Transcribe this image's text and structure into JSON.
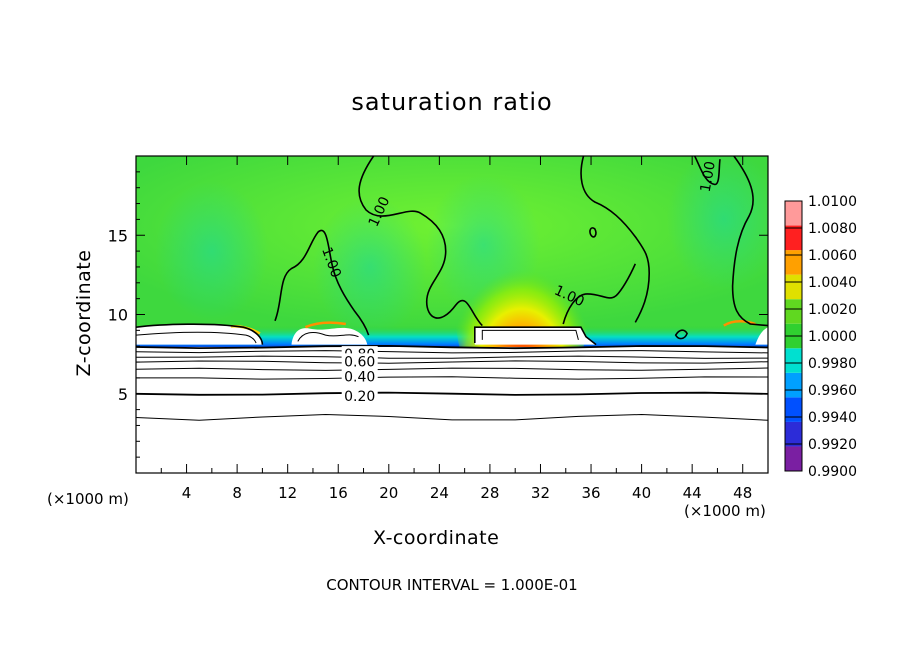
{
  "chart_data": {
    "type": "heatmap",
    "title": "saturation ratio",
    "xlabel": "X-coordinate",
    "ylabel": "Z-coordinate",
    "x_unit_left": "(×1000 m)",
    "x_unit_right": "(×1000 m)",
    "footer": "CONTOUR INTERVAL = 1.000E-01",
    "xlim": [
      0,
      50
    ],
    "ylim": [
      0,
      20
    ],
    "x_ticks": [
      4,
      8,
      12,
      16,
      20,
      24,
      28,
      32,
      36,
      40,
      44,
      48
    ],
    "x_tick_labels": [
      "4",
      "8",
      "12",
      "16",
      "20",
      "24",
      "28",
      "32",
      "36",
      "40",
      "44",
      "48"
    ],
    "y_ticks": [
      5,
      10,
      15
    ],
    "y_tick_labels": [
      "5",
      "10",
      "15"
    ],
    "colorbar": {
      "min": 0.99,
      "max": 1.01,
      "tick_values": [
        0.99,
        0.992,
        0.994,
        0.996,
        0.998,
        1.0,
        1.002,
        1.004,
        1.006,
        1.008,
        1.01
      ],
      "tick_labels": [
        "0.9900",
        "0.9920",
        "0.9940",
        "0.9960",
        "0.9980",
        "1.0000",
        "1.0020",
        "1.0040",
        "1.0060",
        "1.0080",
        "1.0100"
      ],
      "colors": [
        "#7a1fa2",
        "#2c2cd8",
        "#0050ff",
        "#00a0ff",
        "#00e0d0",
        "#30d030",
        "#60d820",
        "#e0e000",
        "#ffa000",
        "#ff2020",
        "#ff9a9a"
      ]
    },
    "field_color": "#3ed83e",
    "contour_labels": [
      {
        "text": "1.00",
        "x": 19.2,
        "z": 16.5,
        "angle": -65
      },
      {
        "text": "1.00",
        "x": 15.5,
        "z": 13.3,
        "angle": 70
      },
      {
        "text": "1.00",
        "x": 34.3,
        "z": 11.2,
        "angle": 25
      },
      {
        "text": "1.00",
        "x": 45.2,
        "z": 18.7,
        "angle": -80
      },
      {
        "text": "0.80",
        "x": 17.7,
        "z": 7.5,
        "angle": 0
      },
      {
        "text": "0.60",
        "x": 17.7,
        "z": 7.05,
        "angle": 0
      },
      {
        "text": "0.40",
        "x": 17.7,
        "z": 6.1,
        "angle": 0
      },
      {
        "text": "0.20",
        "x": 17.7,
        "z": 4.85,
        "angle": 0
      }
    ],
    "unsaturated_contour_levels": [
      0.8,
      0.7,
      0.6,
      0.5,
      0.4,
      0.3,
      0.2,
      0.1
    ],
    "unsaturated_contour_heights": [
      7.95,
      7.65,
      7.3,
      7.0,
      6.55,
      6.0,
      5.0,
      3.5
    ],
    "boundary_layer_top": 7.95,
    "warm_plume": {
      "x": 30.5,
      "z": 9.8,
      "peak": 1.009
    },
    "dry_band": {
      "z": 8.1,
      "min": 0.991
    }
  }
}
